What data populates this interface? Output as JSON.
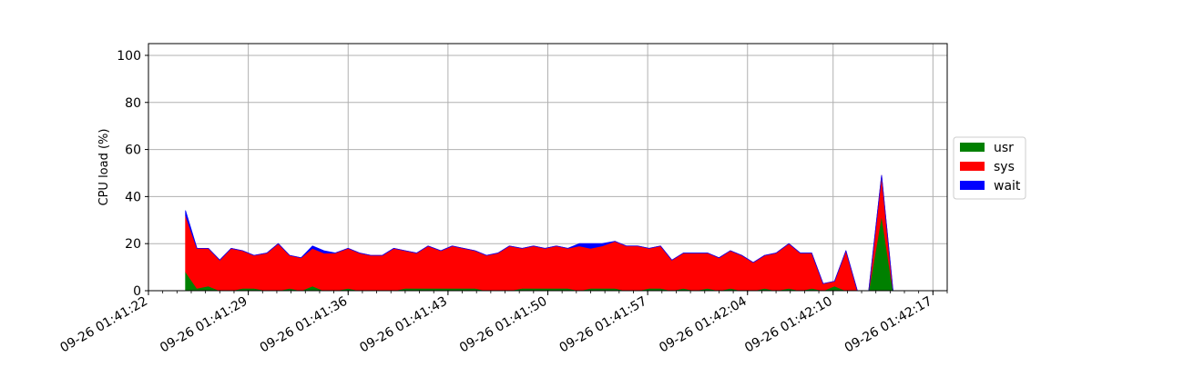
{
  "chart_data": {
    "type": "area",
    "stacked": true,
    "title": "",
    "xlabel": "",
    "ylabel": "CPU load (%)",
    "ylim": [
      0,
      105
    ],
    "y_ticks": [
      0,
      20,
      40,
      60,
      80,
      100
    ],
    "grid": true,
    "legend_position": "outside right, vertically centered",
    "x_axis_type": "datetime",
    "x_start": "09-26 01:41:22",
    "x_end": "09-26 01:42:18",
    "x_tick_labels": [
      "09-26 01:41:22",
      "09-26 01:41:29",
      "09-26 01:41:36",
      "09-26 01:41:43",
      "09-26 01:41:50",
      "09-26 01:41:57",
      "09-26 01:42:04",
      "09-26 01:42:10",
      "09-26 01:42:17"
    ],
    "x": [
      "09-26 01:41:24.6",
      "09-26 01:41:25.4",
      "09-26 01:41:26.2",
      "09-26 01:41:27.0",
      "09-26 01:41:27.8",
      "09-26 01:41:28.6",
      "09-26 01:41:29.4",
      "09-26 01:41:30.3",
      "09-26 01:41:31.1",
      "09-26 01:41:31.9",
      "09-26 01:41:32.7",
      "09-26 01:41:33.5",
      "09-26 01:41:34.3",
      "09-26 01:41:35.1",
      "09-26 01:41:36.0",
      "09-26 01:41:36.8",
      "09-26 01:41:37.6",
      "09-26 01:41:38.4",
      "09-26 01:41:39.2",
      "09-26 01:41:40.0",
      "09-26 01:41:40.8",
      "09-26 01:41:41.6",
      "09-26 01:41:42.5",
      "09-26 01:41:43.3",
      "09-26 01:41:44.1",
      "09-26 01:41:44.9",
      "09-26 01:41:45.7",
      "09-26 01:41:46.5",
      "09-26 01:41:47.3",
      "09-26 01:41:48.2",
      "09-26 01:41:49.0",
      "09-26 01:41:49.8",
      "09-26 01:41:50.6",
      "09-26 01:41:51.4",
      "09-26 01:41:52.2",
      "09-26 01:41:53.0",
      "09-26 01:41:53.8",
      "09-26 01:41:54.7",
      "09-26 01:41:55.5",
      "09-26 01:41:56.3",
      "09-26 01:41:57.1",
      "09-26 01:41:57.9",
      "09-26 01:41:58.7",
      "09-26 01:41:59.5",
      "09-26 01:42:00.3",
      "09-26 01:42:01.2",
      "09-26 01:42:02.0",
      "09-26 01:42:02.8",
      "09-26 01:42:03.6",
      "09-26 01:42:04.4",
      "09-26 01:42:05.2",
      "09-26 01:42:06.0",
      "09-26 01:42:06.9",
      "09-26 01:42:07.7",
      "09-26 01:42:08.5",
      "09-26 01:42:09.3",
      "09-26 01:42:10.1",
      "09-26 01:42:10.9",
      "09-26 01:42:11.7",
      "09-26 01:42:12.5",
      "09-26 01:42:13.4",
      "09-26 01:42:14.2",
      "09-26 01:42:15.0"
    ],
    "series": [
      {
        "name": "usr",
        "color": "#008000",
        "values": [
          8,
          1,
          2,
          0,
          0,
          1,
          1,
          0,
          0,
          1,
          0,
          2,
          0,
          0,
          1,
          0,
          0,
          0,
          0,
          1,
          1,
          1,
          1,
          1,
          1,
          1,
          0,
          0,
          0,
          1,
          1,
          1,
          1,
          1,
          0,
          1,
          1,
          1,
          0,
          0,
          1,
          1,
          0,
          1,
          0,
          1,
          0,
          1,
          0,
          0,
          1,
          0,
          1,
          0,
          1,
          0,
          2,
          0,
          0,
          0,
          32,
          0,
          0
        ]
      },
      {
        "name": "sys",
        "color": "#ff0000",
        "values": [
          24,
          17,
          16,
          13,
          18,
          16,
          14,
          16,
          20,
          14,
          14,
          16,
          16,
          16,
          17,
          16,
          15,
          15,
          18,
          16,
          15,
          18,
          16,
          18,
          17,
          16,
          15,
          16,
          19,
          17,
          18,
          17,
          18,
          17,
          19,
          17,
          18,
          20,
          19,
          19,
          17,
          18,
          13,
          15,
          16,
          15,
          14,
          16,
          15,
          12,
          14,
          16,
          19,
          16,
          15,
          3,
          2,
          17,
          0,
          0,
          17,
          0,
          0
        ]
      },
      {
        "name": "wait",
        "color": "#0000ff",
        "values": [
          2,
          0,
          0,
          0,
          0,
          0,
          0,
          0,
          0,
          0,
          0,
          1,
          1,
          0,
          0,
          0,
          0,
          0,
          0,
          0,
          0,
          0,
          0,
          0,
          0,
          0,
          0,
          0,
          0,
          0,
          0,
          0,
          0,
          0,
          1,
          2,
          1,
          0,
          0,
          0,
          0,
          0,
          0,
          0,
          0,
          0,
          0,
          0,
          0,
          0,
          0,
          0,
          0,
          0,
          0,
          0,
          0,
          0,
          0,
          0,
          0,
          0,
          0
        ]
      }
    ]
  }
}
